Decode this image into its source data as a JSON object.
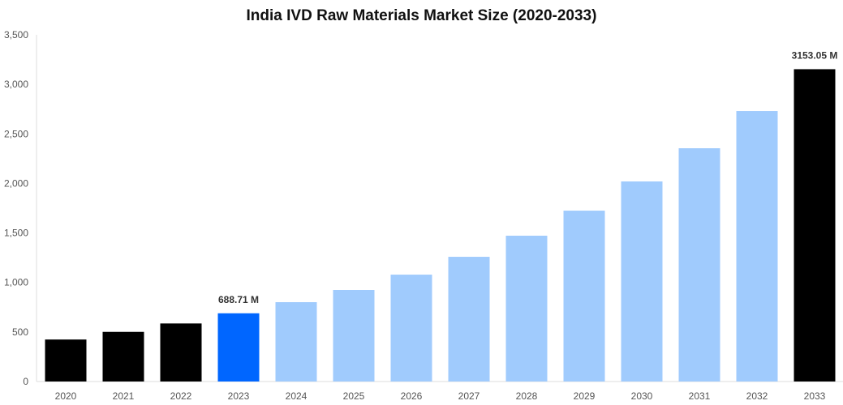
{
  "chart_data": {
    "type": "bar",
    "title": "India IVD Raw Materials Market Size (2020-2033)",
    "xlabel": "",
    "ylabel": "",
    "ylim": [
      0,
      3500
    ],
    "yticks": [
      0,
      500,
      1000,
      1500,
      2000,
      2500,
      3000,
      3500
    ],
    "ytick_labels": [
      "0",
      "500",
      "1,000",
      "1,500",
      "2,000",
      "2,500",
      "3,000",
      "3,500"
    ],
    "categories": [
      "2020",
      "2021",
      "2022",
      "2023",
      "2024",
      "2025",
      "2026",
      "2027",
      "2028",
      "2029",
      "2030",
      "2031",
      "2032",
      "2033"
    ],
    "values": [
      424,
      501,
      586,
      688.71,
      801,
      924,
      1079,
      1259,
      1472,
      1725,
      2020,
      2355,
      2731,
      3153.05
    ],
    "bar_colors": [
      "#000000",
      "#000000",
      "#000000",
      "#0066ff",
      "#a0cbfd",
      "#a0cbfd",
      "#a0cbfd",
      "#a0cbfd",
      "#a0cbfd",
      "#a0cbfd",
      "#a0cbfd",
      "#a0cbfd",
      "#a0cbfd",
      "#000000"
    ],
    "data_labels": {
      "3": "688.71 M",
      "13": "3153.05 M"
    },
    "grid": false
  }
}
